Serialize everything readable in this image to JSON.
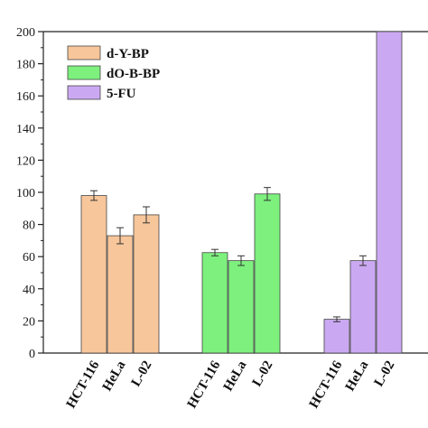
{
  "chart_data": {
    "type": "bar",
    "title": "",
    "xlabel": "",
    "ylabel": "",
    "ylim": [
      0,
      200
    ],
    "yticks": [
      0,
      20,
      40,
      60,
      80,
      100,
      120,
      140,
      160,
      180,
      200
    ],
    "ytick_labels": [
      "0",
      "20",
      "40",
      "60",
      "80",
      "100",
      "120",
      "140",
      "160",
      "180",
      "200"
    ],
    "legend_position": "top-left",
    "groups": [
      {
        "name": "d-Y-BP",
        "color": "#f7c69a",
        "categories": [
          "HCT-116",
          "HeLa",
          "L-02"
        ],
        "values": [
          98,
          73,
          86
        ],
        "errors": [
          3,
          5,
          5
        ]
      },
      {
        "name": "dO-B-BP",
        "color": "#7df07d",
        "categories": [
          "HCT-116",
          "HeLa",
          "L-02"
        ],
        "values": [
          62.5,
          57.5,
          99
        ],
        "errors": [
          2,
          3,
          4
        ]
      },
      {
        "name": "5-FU",
        "color": "#cba9f2",
        "categories": [
          "HCT-116",
          "HeLa",
          "L-02"
        ],
        "values": [
          21,
          57.5,
          200
        ],
        "errors": [
          1.5,
          3,
          0
        ]
      }
    ]
  }
}
